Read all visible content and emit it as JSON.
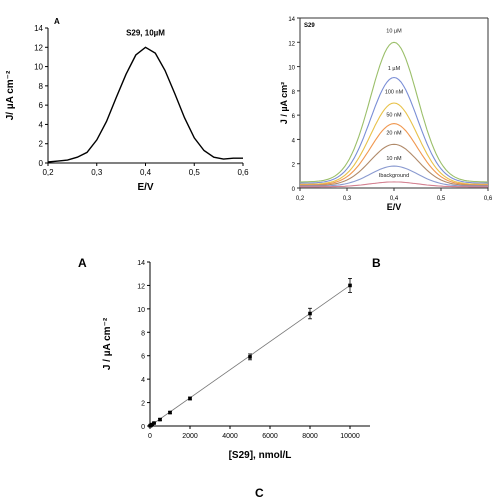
{
  "panel_labels": {
    "a": "A",
    "b": "B",
    "c": "C"
  },
  "chart_data": [
    {
      "type": "line",
      "panel_tag": "A",
      "annotation": "S29, 10µM",
      "xlabel": "E/V",
      "ylabel": "J/ µA cm⁻²",
      "xlim": [
        0.2,
        0.6
      ],
      "ylim": [
        0,
        14
      ],
      "xticks": [
        "0,2",
        "0,3",
        "0,4",
        "0,5",
        "0,6"
      ],
      "yticks": [
        "0",
        "2",
        "4",
        "6",
        "8",
        "10",
        "12",
        "14"
      ],
      "grid": false,
      "series": [
        {
          "x": [
            0.2,
            0.22,
            0.24,
            0.26,
            0.28,
            0.3,
            0.32,
            0.34,
            0.36,
            0.38,
            0.4,
            0.42,
            0.44,
            0.46,
            0.48,
            0.5,
            0.52,
            0.54,
            0.56,
            0.58,
            0.6
          ],
          "values": [
            0.1,
            0.2,
            0.3,
            0.6,
            1.1,
            2.4,
            4.3,
            6.8,
            9.2,
            11.2,
            12.0,
            11.4,
            9.6,
            7.2,
            4.7,
            2.6,
            1.3,
            0.6,
            0.4,
            0.5,
            0.5
          ]
        }
      ]
    },
    {
      "type": "line",
      "panel_tag": "S29",
      "xlabel": "E/V",
      "ylabel": "J / µA cm²",
      "xlim": [
        0.2,
        0.6
      ],
      "ylim": [
        0,
        14
      ],
      "xticks": [
        "0,2",
        "0,3",
        "0,4",
        "0,5",
        "0,6"
      ],
      "yticks": [
        "0",
        "2",
        "4",
        "6",
        "8",
        "10",
        "12",
        "14"
      ],
      "grid": false,
      "series": [
        {
          "name": "10 µM",
          "peak": 12.0,
          "base": 0.5,
          "color": "#9bbf6a"
        },
        {
          "name": "1 µM",
          "peak": 9.1,
          "base": 0.4,
          "color": "#7a8ed6"
        },
        {
          "name": "100 nM",
          "peak": 7.0,
          "base": 0.3,
          "color": "#e8c24a"
        },
        {
          "name": "50 nM",
          "peak": 5.3,
          "base": 0.25,
          "color": "#f09850"
        },
        {
          "name": "20 nM",
          "peak": 3.6,
          "base": 0.2,
          "color": "#b08a6a"
        },
        {
          "name": "10 nM",
          "peak": 1.8,
          "base": 0.15,
          "color": "#8a9ad0"
        },
        {
          "name": "Ibackground",
          "peak": 0.5,
          "base": 0.1,
          "color": "#d48090"
        }
      ],
      "label_values": [
        12.8,
        9.7,
        7.8,
        5.9,
        4.4,
        2.3,
        0.9
      ]
    },
    {
      "type": "scatter",
      "xlabel": "[S29], nmol/L",
      "ylabel": "J / µA cm⁻²",
      "xlim": [
        0,
        11000
      ],
      "ylim": [
        0,
        14
      ],
      "xticks": [
        "0",
        "2000",
        "4000",
        "6000",
        "8000",
        "10000"
      ],
      "yticks": [
        "0",
        "2",
        "4",
        "6",
        "8",
        "10",
        "12",
        "14"
      ],
      "grid": false,
      "x": [
        10,
        20,
        50,
        100,
        200,
        500,
        1000,
        2000,
        5000,
        8000,
        10000
      ],
      "values": [
        0.02,
        0.03,
        0.06,
        0.12,
        0.25,
        0.55,
        1.15,
        2.35,
        5.9,
        9.6,
        12.0
      ],
      "errors": [
        0.05,
        0.05,
        0.05,
        0.05,
        0.05,
        0.08,
        0.1,
        0.12,
        0.25,
        0.45,
        0.6
      ],
      "fit": [
        0,
        12.0
      ]
    }
  ]
}
